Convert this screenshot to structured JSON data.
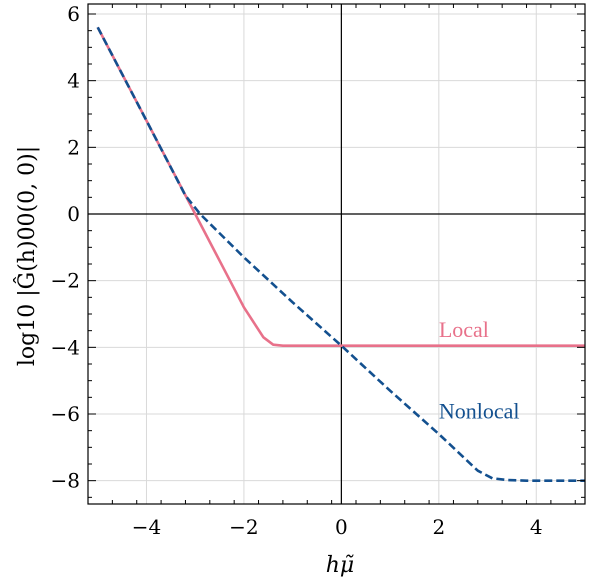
{
  "chart_data": {
    "type": "line",
    "xlabel": "hμ̃",
    "ylabel": "log10 |Ĝ(h)00(0, 0)|",
    "xlim": [
      -5.2,
      5.0
    ],
    "ylim": [
      -8.7,
      6.3
    ],
    "xticks": [
      -4,
      -2,
      0,
      2,
      4
    ],
    "xtick_labels": [
      "−4",
      "−2",
      "0",
      "2",
      "4"
    ],
    "yticks": [
      6,
      4,
      2,
      0,
      -2,
      -4,
      -6,
      -8
    ],
    "ytick_labels": [
      "6",
      "4",
      "2",
      "0",
      "−2",
      "−4",
      "−6",
      "−8"
    ],
    "grid": true,
    "series": [
      {
        "name": "Local",
        "color": "#e8718a",
        "style": "solid",
        "x": [
          -5.0,
          -4.5,
          -4.0,
          -3.5,
          -3.0,
          -2.5,
          -2.0,
          -1.6,
          -1.4,
          -1.2,
          0,
          1,
          2,
          3,
          4,
          5
        ],
        "y": [
          5.6,
          4.2,
          2.8,
          1.4,
          0.0,
          -1.4,
          -2.8,
          -3.7,
          -3.92,
          -3.95,
          -3.95,
          -3.95,
          -3.95,
          -3.95,
          -3.95,
          -3.95
        ]
      },
      {
        "name": "Nonlocal",
        "color": "#13508f",
        "style": "dashed",
        "x": [
          -5.0,
          -4.0,
          -3.2,
          -2.9,
          -2.0,
          -1.0,
          0.0,
          1.0,
          2.0,
          2.8,
          3.1,
          3.4,
          3.8,
          4.3,
          5.0
        ],
        "y": [
          5.6,
          2.8,
          0.55,
          0.0,
          -1.3,
          -2.65,
          -3.95,
          -5.3,
          -6.6,
          -7.7,
          -7.93,
          -7.98,
          -8.0,
          -8.0,
          -8.0
        ]
      }
    ],
    "annotations": [
      {
        "text": "Local",
        "x": 2.0,
        "y": -3.45,
        "color": "#e8718a"
      },
      {
        "text": "Nonlocal",
        "x": 2.0,
        "y": -5.9,
        "color": "#13508f"
      }
    ]
  }
}
